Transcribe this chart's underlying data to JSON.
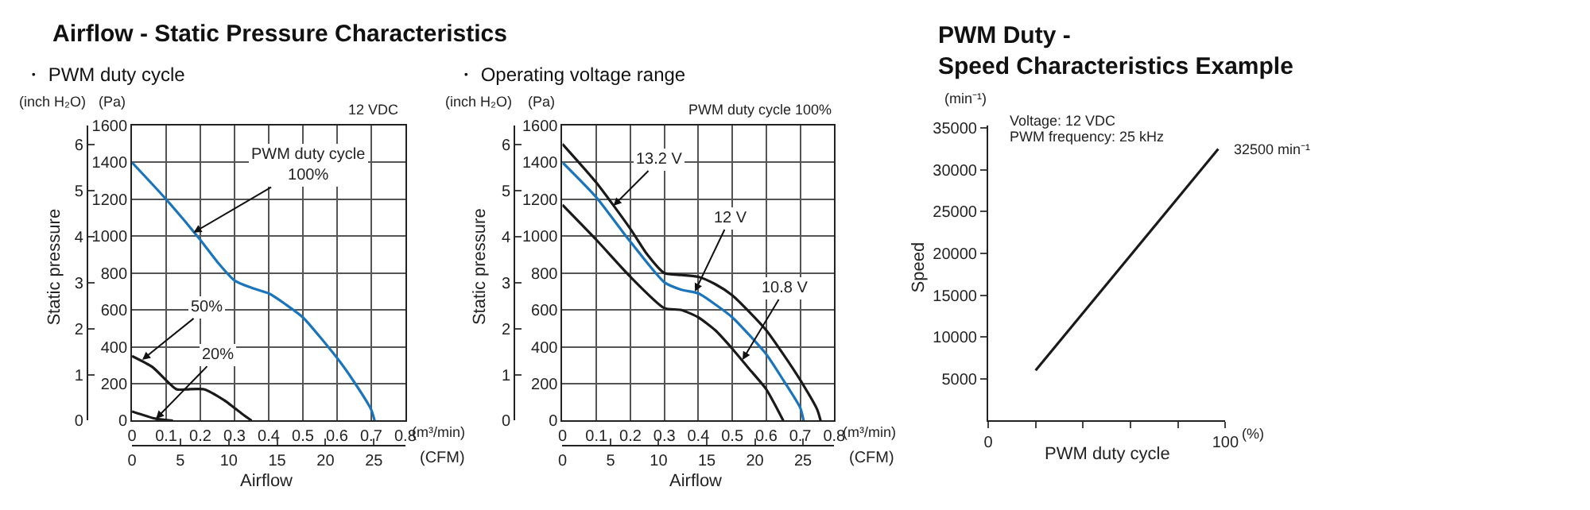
{
  "chart_data": [
    {
      "type": "line",
      "title": "Airflow - Static Pressure Characteristics",
      "subtitle": "・ PWM duty cycle",
      "xlabel": "Airflow",
      "ylabel": "(Pa)",
      "y2label": "(inch H₂O)",
      "x2label": "(CFM)",
      "annotations": [
        "Static pressure",
        "(m³/min)",
        "12 VDC",
        {
          "text": "PWM duty cycle\n100%",
          "x": 0.18,
          "y": 1020
        },
        {
          "text": "50%",
          "x": 0.03,
          "y": 330
        },
        {
          "text": "20%",
          "x": 0.07,
          "y": 10
        }
      ],
      "series": [
        {
          "color": "#1a75bc",
          "x": [
            0,
            0.1,
            0.2,
            0.25,
            0.3,
            0.35,
            0.4,
            0.45,
            0.5,
            0.6,
            0.65,
            0.7,
            0.71
          ],
          "values": [
            1400,
            1200,
            980,
            860,
            760,
            720,
            690,
            630,
            560,
            340,
            210,
            60,
            0
          ]
        },
        {
          "color": "#1a1a1a",
          "x": [
            0,
            0.06,
            0.13,
            0.16,
            0.21,
            0.27,
            0.32,
            0.35
          ],
          "values": [
            350,
            290,
            170,
            170,
            170,
            110,
            40,
            0
          ]
        },
        {
          "color": "#1a1a1a",
          "x": [
            0,
            0.07,
            0.12
          ],
          "values": [
            50,
            10,
            0
          ]
        }
      ],
      "xlim": [
        0,
        0.8
      ],
      "xticks": [
        0,
        0.1,
        0.2,
        0.3,
        0.4,
        0.5,
        0.6,
        0.7,
        0.8
      ],
      "ylim": [
        0,
        1600
      ],
      "yticks": [
        0,
        200,
        400,
        600,
        800,
        1000,
        1200,
        1400,
        1600
      ],
      "y2lim": [
        0,
        6.42
      ],
      "y2ticks": [
        0,
        1,
        2,
        3,
        4,
        5,
        6
      ],
      "x2lim": [
        0,
        28.25
      ],
      "x2ticks": [
        0,
        5,
        10,
        15,
        20,
        25
      ],
      "grid": true
    },
    {
      "type": "line",
      "subtitle": "・ Operating voltage range",
      "xlabel": "Airflow",
      "ylabel": "(Pa)",
      "y2label": "(inch H₂O)",
      "x2label": "(CFM)",
      "annotations": [
        "Static pressure",
        "(m³/min)",
        "PWM duty cycle 100%",
        {
          "text": "13.2 V",
          "x": 0.15,
          "y": 1165
        },
        {
          "text": "12 V",
          "x": 0.39,
          "y": 700
        },
        {
          "text": "10.8 V",
          "x": 0.53,
          "y": 330
        }
      ],
      "series": [
        {
          "color": "#1a1a1a",
          "x": [
            0,
            0.1,
            0.2,
            0.25,
            0.3,
            0.35,
            0.4,
            0.45,
            0.5,
            0.55,
            0.6,
            0.65,
            0.7,
            0.75,
            0.76
          ],
          "values": [
            1500,
            1290,
            1040,
            900,
            800,
            790,
            780,
            740,
            680,
            590,
            490,
            360,
            220,
            60,
            0
          ]
        },
        {
          "color": "#1a75bc",
          "x": [
            0,
            0.1,
            0.2,
            0.3,
            0.35,
            0.4,
            0.45,
            0.5,
            0.6,
            0.65,
            0.7,
            0.71
          ],
          "values": [
            1400,
            1210,
            970,
            750,
            710,
            690,
            630,
            560,
            360,
            220,
            70,
            0
          ]
        },
        {
          "color": "#1a1a1a",
          "x": [
            0,
            0.1,
            0.2,
            0.3,
            0.35,
            0.4,
            0.45,
            0.5,
            0.55,
            0.6,
            0.65
          ],
          "values": [
            1170,
            980,
            780,
            610,
            600,
            560,
            490,
            390,
            280,
            170,
            0
          ]
        }
      ],
      "xlim": [
        0,
        0.8
      ],
      "xticks": [
        0,
        0.1,
        0.2,
        0.3,
        0.4,
        0.5,
        0.6,
        0.7,
        0.8
      ],
      "ylim": [
        0,
        1600
      ],
      "yticks": [
        0,
        200,
        400,
        600,
        800,
        1000,
        1200,
        1400,
        1600
      ],
      "y2lim": [
        0,
        6.42
      ],
      "y2ticks": [
        0,
        1,
        2,
        3,
        4,
        5,
        6
      ],
      "x2lim": [
        0,
        28.25
      ],
      "x2ticks": [
        0,
        5,
        10,
        15,
        20,
        25
      ],
      "grid": true
    },
    {
      "type": "line",
      "title": "PWM Duty -\nSpeed Characteristics Example",
      "xlabel": "PWM duty cycle",
      "ylabel": "(min⁻¹)",
      "annotations": [
        "Speed",
        "Voltage: 12 VDC",
        "PWM frequency: 25 kHz",
        "(%)",
        {
          "text": "32500 min⁻¹",
          "x": 97,
          "y": 32500
        }
      ],
      "series": [
        {
          "color": "#1a1a1a",
          "x": [
            20,
            97
          ],
          "values": [
            6000,
            32500
          ]
        }
      ],
      "xlim": [
        0,
        100
      ],
      "xticks": [
        {
          "value": 0,
          "label": "0"
        },
        {
          "value": 20,
          "label": null
        },
        {
          "value": 40,
          "label": null
        },
        {
          "value": 60,
          "label": null
        },
        {
          "value": 80,
          "label": null
        },
        100
      ],
      "ylim": [
        0,
        35300
      ],
      "yticks": [
        5000,
        10000,
        15000,
        20000,
        25000,
        30000,
        35000
      ],
      "grid": false
    }
  ]
}
